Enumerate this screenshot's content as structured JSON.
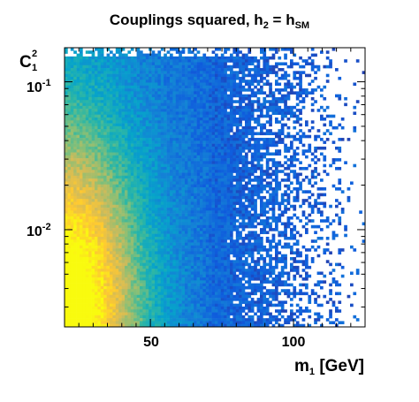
{
  "chart_data": {
    "type": "heatmap",
    "title": {
      "main": "Couplings squared, h",
      "sub2": "2",
      "eq": " = h",
      "subSM": "SM"
    },
    "xlabel": {
      "main": "m",
      "sub": "1",
      "unit": " [GeV]"
    },
    "ylabel": {
      "main": "C",
      "sup": "2",
      "sub": "1"
    },
    "xlim": [
      20,
      125
    ],
    "ylim": [
      0.0022,
      0.17
    ],
    "yscale": "log",
    "x_ticks": [
      {
        "value": 50,
        "label": "50"
      },
      {
        "value": 100,
        "label": "100"
      }
    ],
    "y_ticks": [
      {
        "value": 0.1,
        "base": "10",
        "exp": "-1"
      },
      {
        "value": 0.01,
        "base": "10",
        "exp": "-2"
      }
    ],
    "grid": false,
    "legend": "none",
    "colormap": [
      "#352a87",
      "#0f5cdd",
      "#1481d6",
      "#06a4ca",
      "#2eb7a4",
      "#87bf77",
      "#d1bb59",
      "#fec832",
      "#f9fb0e"
    ],
    "density_profile": {
      "x_start": 20,
      "x_end": 125,
      "peak_near_x": 22,
      "dense_band_end_x": 75,
      "sparse_tail_end_x": 125,
      "peak_near_y": 0.003
    }
  }
}
